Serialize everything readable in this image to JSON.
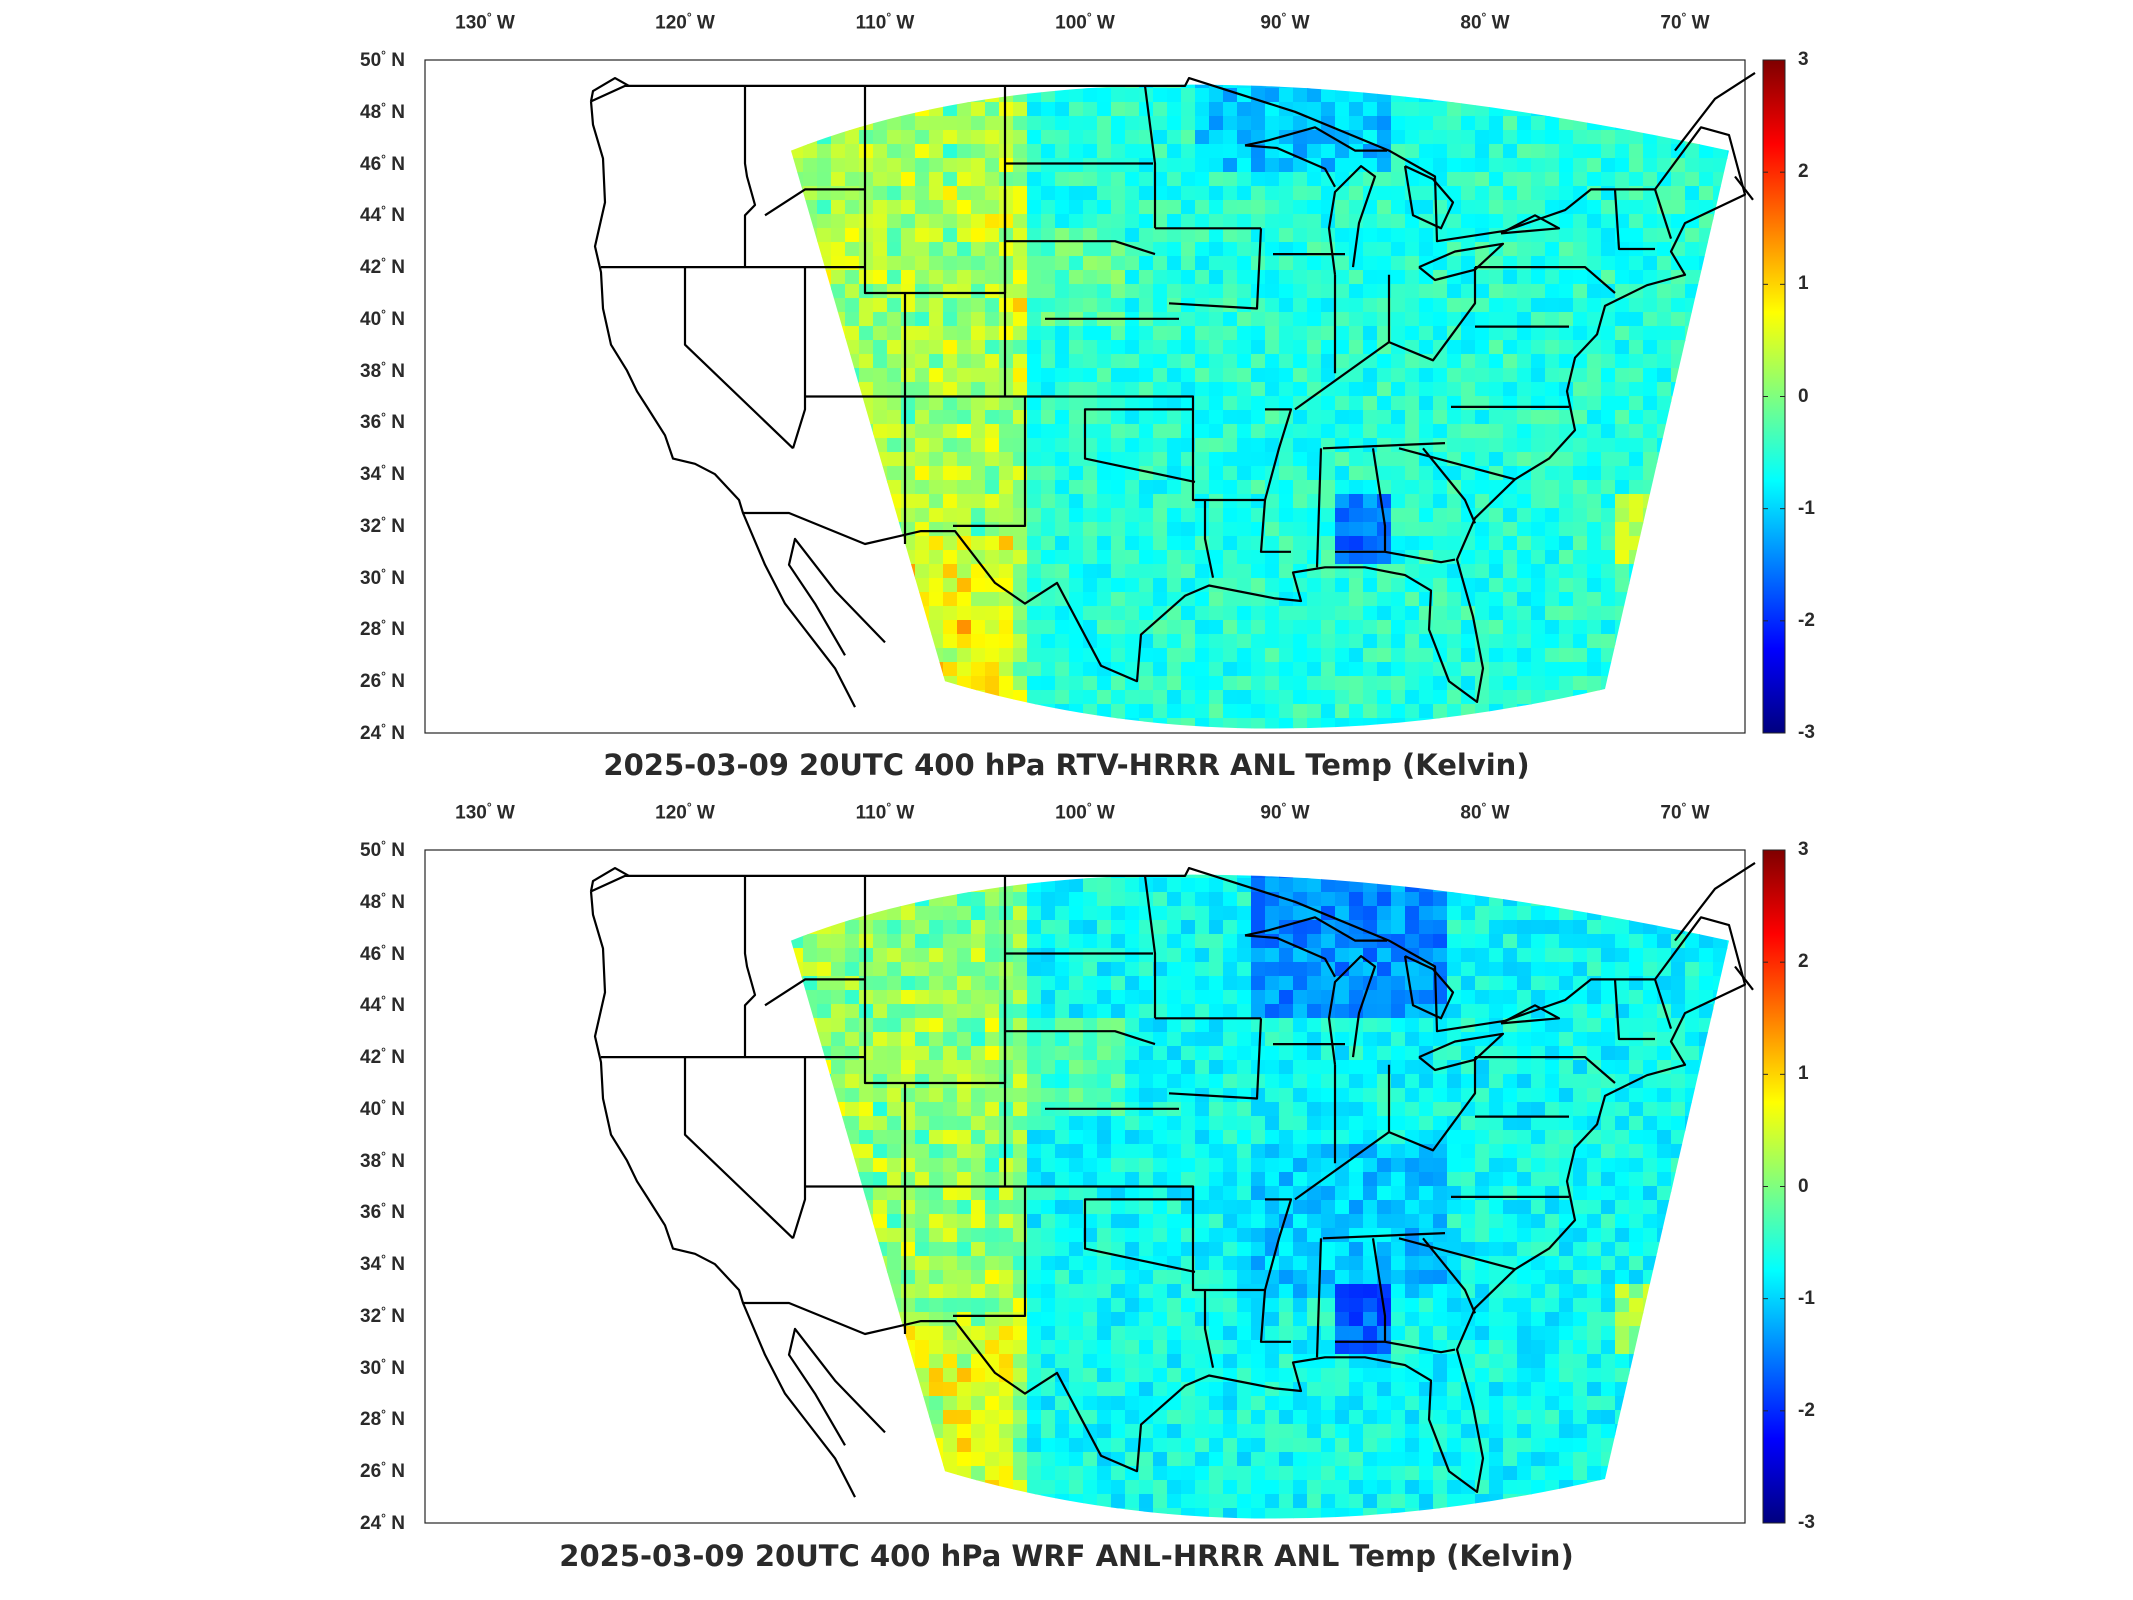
{
  "panels": [
    {
      "title": "2025-03-09 20UTC 400 hPa RTV-HRRR ANL Temp (Kelvin)",
      "variant": "rtv"
    },
    {
      "title": "2025-03-09 20UTC 400 hPa WRF ANL-HRRR ANL Temp (Kelvin)",
      "variant": "wrf"
    }
  ],
  "axes": {
    "lon_ticks": [
      {
        "deg": "130",
        "hem": "W"
      },
      {
        "deg": "120",
        "hem": "W"
      },
      {
        "deg": "110",
        "hem": "W"
      },
      {
        "deg": "100",
        "hem": "W"
      },
      {
        "deg": "90",
        "hem": "W"
      },
      {
        "deg": "80",
        "hem": "W"
      },
      {
        "deg": "70",
        "hem": "W"
      }
    ],
    "lat_ticks": [
      {
        "deg": "50",
        "hem": "N"
      },
      {
        "deg": "48",
        "hem": "N"
      },
      {
        "deg": "46",
        "hem": "N"
      },
      {
        "deg": "44",
        "hem": "N"
      },
      {
        "deg": "42",
        "hem": "N"
      },
      {
        "deg": "40",
        "hem": "N"
      },
      {
        "deg": "38",
        "hem": "N"
      },
      {
        "deg": "36",
        "hem": "N"
      },
      {
        "deg": "34",
        "hem": "N"
      },
      {
        "deg": "32",
        "hem": "N"
      },
      {
        "deg": "30",
        "hem": "N"
      },
      {
        "deg": "28",
        "hem": "N"
      },
      {
        "deg": "26",
        "hem": "N"
      },
      {
        "deg": "24",
        "hem": "N"
      }
    ],
    "lon_range": [
      -133,
      -67
    ],
    "lat_range": [
      24,
      50
    ]
  },
  "colorbar": {
    "colormap": "jet",
    "range": [
      -3,
      3
    ],
    "ticks": [
      "3",
      "2",
      "1",
      "0",
      "-1",
      "-2",
      "-3"
    ],
    "colors": [
      "#00007f",
      "#0000ff",
      "#007fff",
      "#00ffff",
      "#7fff7f",
      "#ffff00",
      "#ff7f00",
      "#ff0000",
      "#7f0000"
    ]
  }
}
